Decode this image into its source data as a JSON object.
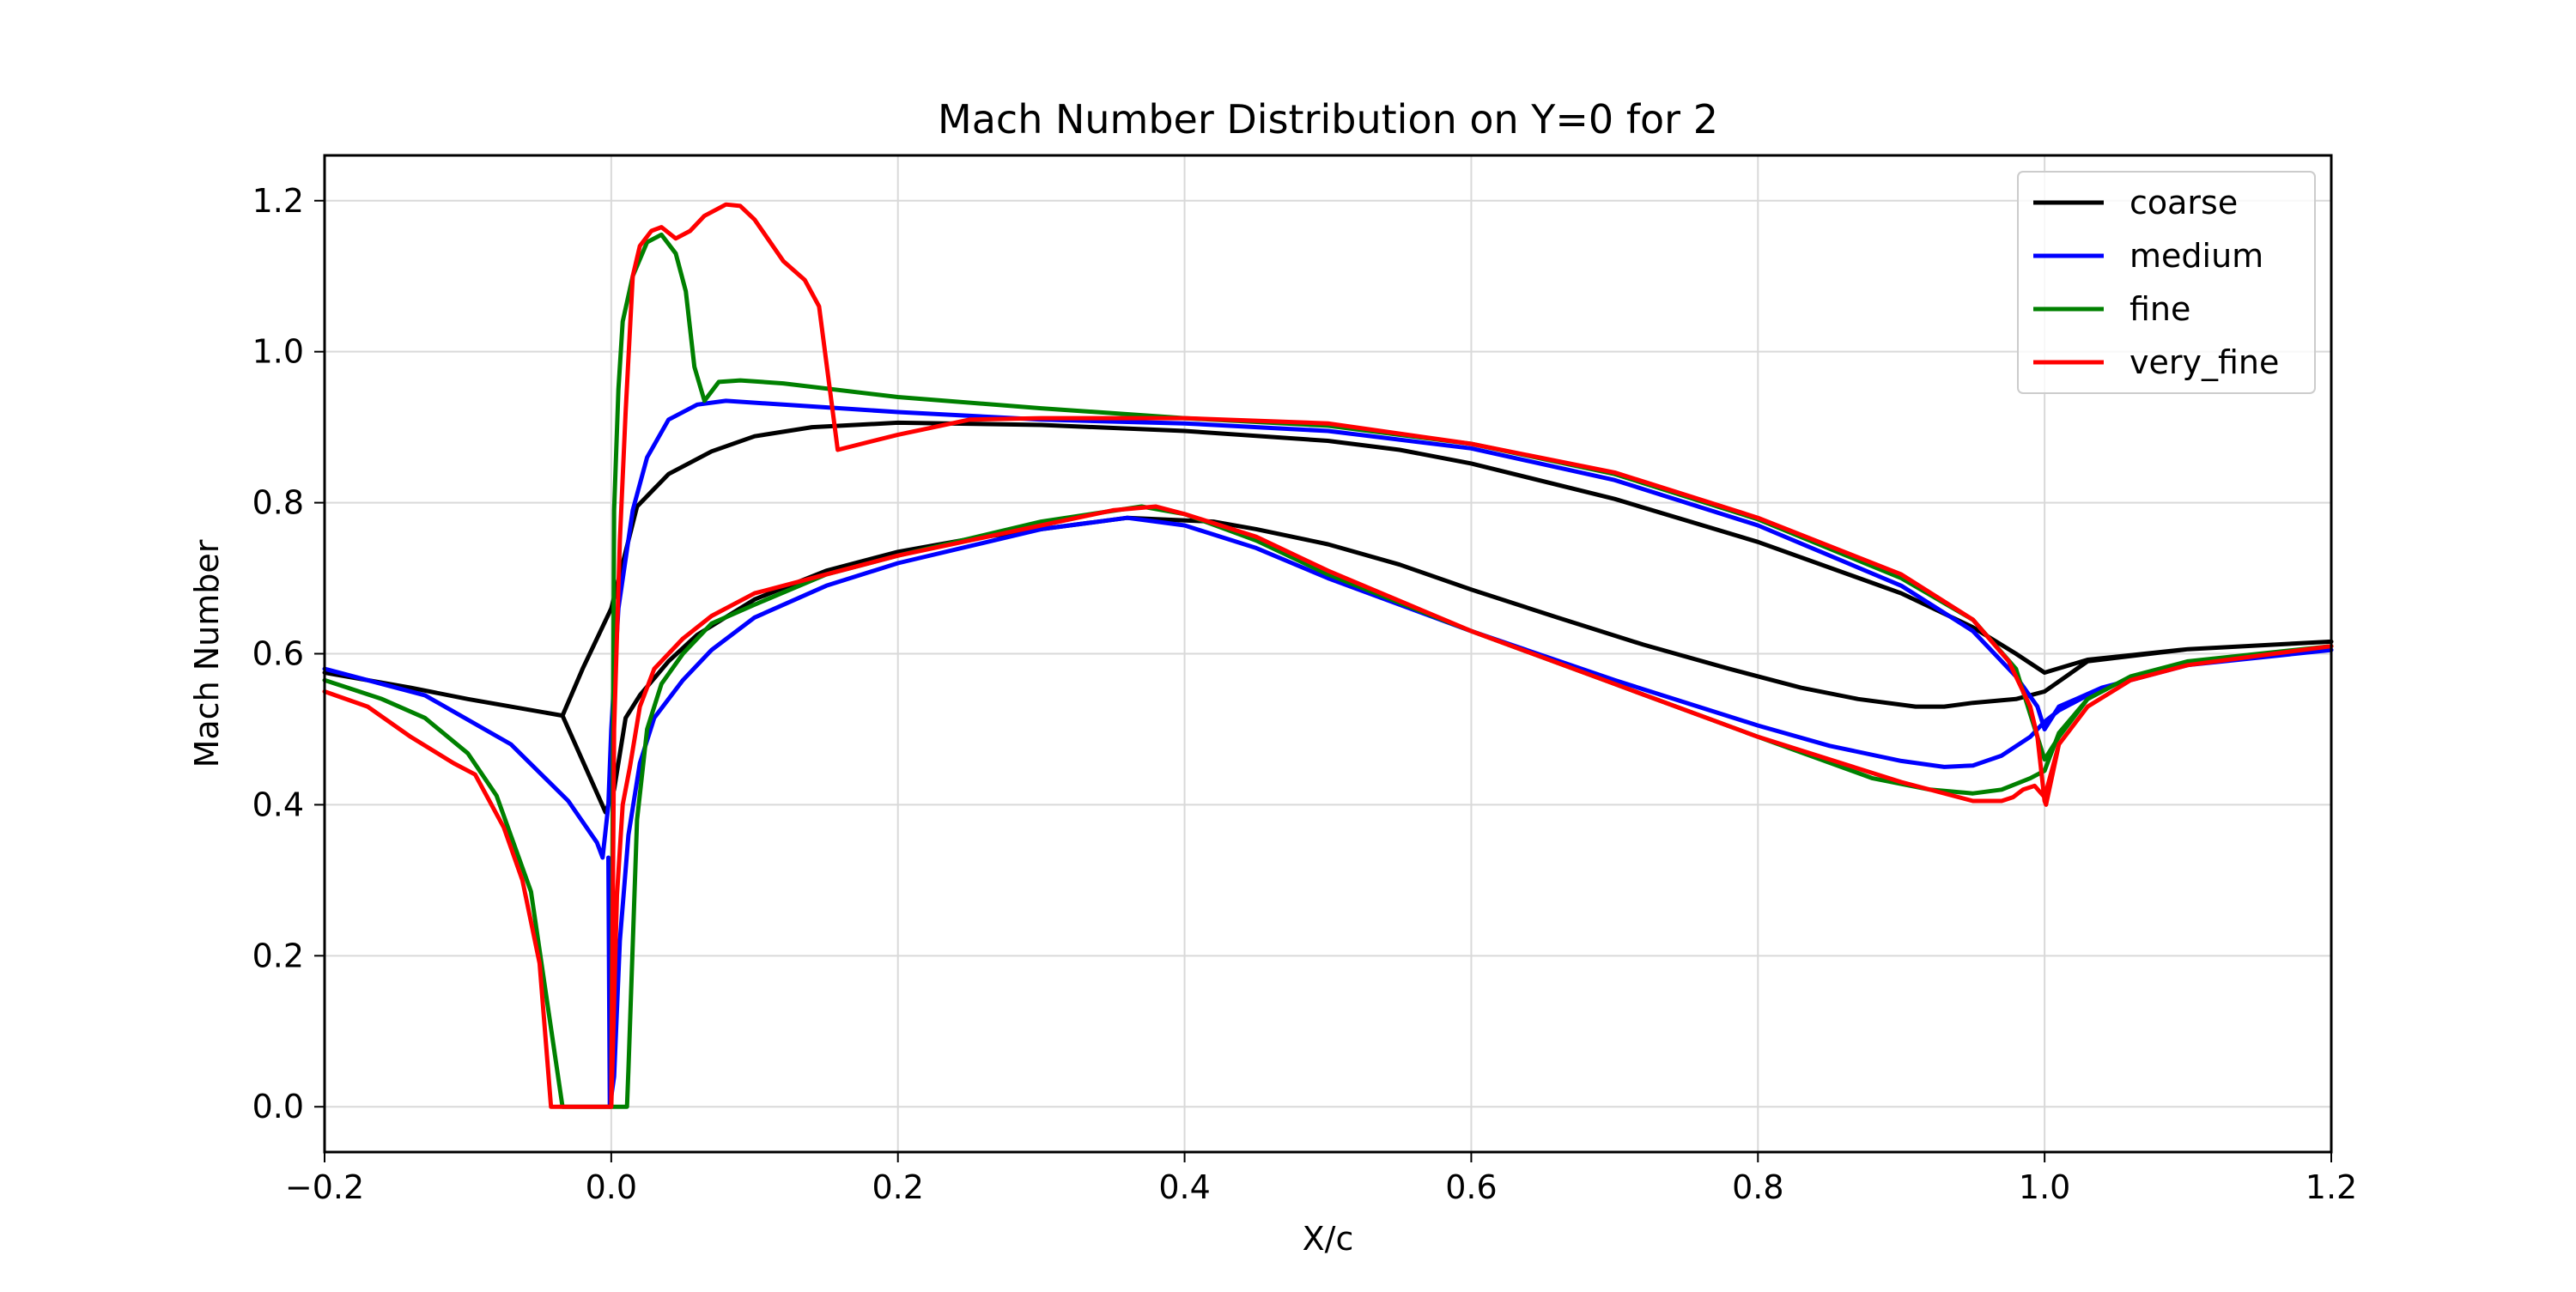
{
  "chart_data": {
    "type": "line",
    "title": "Mach Number Distribution on Y=0 for 2",
    "xlabel": "X/c",
    "ylabel": "Mach Number",
    "xlim": [
      -0.2,
      1.2
    ],
    "ylim": [
      -0.06,
      1.26
    ],
    "xticks": [
      -0.2,
      0.0,
      0.2,
      0.4,
      0.6,
      0.8,
      1.0,
      1.2
    ],
    "xtick_labels": [
      "−0.2",
      "0.0",
      "0.2",
      "0.4",
      "0.6",
      "0.8",
      "1.0",
      "1.2"
    ],
    "yticks": [
      0.0,
      0.2,
      0.4,
      0.6,
      0.8,
      1.0,
      1.2
    ],
    "ytick_labels": [
      "0.0",
      "0.2",
      "0.4",
      "0.6",
      "0.8",
      "1.0",
      "1.2"
    ],
    "grid": true,
    "legend_position": "top-right",
    "series": [
      {
        "name": "coarse",
        "color": "#000000",
        "points": [
          [
            -0.2,
            0.575
          ],
          [
            -0.14,
            0.555
          ],
          [
            -0.1,
            0.54
          ],
          [
            -0.034,
            0.518
          ],
          [
            -0.02,
            0.58
          ],
          [
            0.0,
            0.66
          ],
          [
            0.018,
            0.795
          ],
          [
            0.04,
            0.838
          ],
          [
            0.07,
            0.868
          ],
          [
            0.1,
            0.888
          ],
          [
            0.14,
            0.9
          ],
          [
            0.2,
            0.906
          ],
          [
            0.3,
            0.903
          ],
          [
            0.4,
            0.895
          ],
          [
            0.5,
            0.882
          ],
          [
            0.55,
            0.87
          ],
          [
            0.6,
            0.852
          ],
          [
            0.7,
            0.805
          ],
          [
            0.8,
            0.748
          ],
          [
            0.9,
            0.68
          ],
          [
            0.95,
            0.635
          ],
          [
            0.98,
            0.6
          ],
          [
            1.0,
            0.575
          ],
          [
            1.03,
            0.592
          ],
          [
            1.1,
            0.606
          ],
          [
            1.2,
            0.616
          ],
          [
            1.2,
            0.616
          ],
          [
            1.1,
            0.606
          ],
          [
            1.03,
            0.59
          ],
          [
            1.0,
            0.55
          ],
          [
            0.98,
            0.54
          ],
          [
            0.95,
            0.535
          ],
          [
            0.93,
            0.53
          ],
          [
            0.91,
            0.53
          ],
          [
            0.87,
            0.54
          ],
          [
            0.83,
            0.555
          ],
          [
            0.78,
            0.58
          ],
          [
            0.72,
            0.612
          ],
          [
            0.66,
            0.648
          ],
          [
            0.6,
            0.685
          ],
          [
            0.55,
            0.718
          ],
          [
            0.5,
            0.745
          ],
          [
            0.45,
            0.765
          ],
          [
            0.42,
            0.775
          ],
          [
            0.36,
            0.78
          ],
          [
            0.3,
            0.765
          ],
          [
            0.25,
            0.752
          ],
          [
            0.2,
            0.735
          ],
          [
            0.15,
            0.71
          ],
          [
            0.1,
            0.672
          ],
          [
            0.06,
            0.625
          ],
          [
            0.04,
            0.59
          ],
          [
            0.02,
            0.545
          ],
          [
            0.01,
            0.515
          ],
          [
            0.002,
            0.42
          ],
          [
            -0.004,
            0.39
          ],
          [
            -0.034,
            0.518
          ]
        ]
      },
      {
        "name": "medium",
        "color": "#0000ff",
        "points": [
          [
            -0.2,
            0.58
          ],
          [
            -0.13,
            0.545
          ],
          [
            -0.07,
            0.48
          ],
          [
            -0.03,
            0.405
          ],
          [
            -0.01,
            0.35
          ],
          [
            -0.006,
            0.33
          ],
          [
            -0.002,
            0.4
          ],
          [
            0.0,
            0.5
          ],
          [
            0.005,
            0.66
          ],
          [
            0.015,
            0.79
          ],
          [
            0.025,
            0.86
          ],
          [
            0.04,
            0.91
          ],
          [
            0.06,
            0.93
          ],
          [
            0.08,
            0.935
          ],
          [
            0.12,
            0.93
          ],
          [
            0.2,
            0.92
          ],
          [
            0.3,
            0.91
          ],
          [
            0.4,
            0.905
          ],
          [
            0.5,
            0.895
          ],
          [
            0.6,
            0.872
          ],
          [
            0.7,
            0.83
          ],
          [
            0.8,
            0.77
          ],
          [
            0.9,
            0.69
          ],
          [
            0.95,
            0.63
          ],
          [
            0.98,
            0.57
          ],
          [
            0.995,
            0.53
          ],
          [
            1.0,
            0.5
          ],
          [
            1.01,
            0.53
          ],
          [
            1.04,
            0.555
          ],
          [
            1.1,
            0.585
          ],
          [
            1.2,
            0.605
          ],
          [
            1.2,
            0.605
          ],
          [
            1.1,
            0.585
          ],
          [
            1.04,
            0.555
          ],
          [
            1.01,
            0.525
          ],
          [
            1.0,
            0.51
          ],
          [
            0.99,
            0.49
          ],
          [
            0.97,
            0.465
          ],
          [
            0.95,
            0.452
          ],
          [
            0.93,
            0.45
          ],
          [
            0.9,
            0.458
          ],
          [
            0.85,
            0.478
          ],
          [
            0.8,
            0.505
          ],
          [
            0.7,
            0.565
          ],
          [
            0.6,
            0.63
          ],
          [
            0.5,
            0.7
          ],
          [
            0.45,
            0.74
          ],
          [
            0.4,
            0.77
          ],
          [
            0.36,
            0.78
          ],
          [
            0.3,
            0.765
          ],
          [
            0.2,
            0.72
          ],
          [
            0.15,
            0.69
          ],
          [
            0.1,
            0.648
          ],
          [
            0.07,
            0.605
          ],
          [
            0.05,
            0.565
          ],
          [
            0.03,
            0.515
          ],
          [
            0.02,
            0.455
          ],
          [
            0.012,
            0.36
          ],
          [
            0.006,
            0.22
          ],
          [
            0.002,
            0.04
          ],
          [
            -0.001,
            0.0
          ],
          [
            -0.002,
            0.33
          ]
        ]
      },
      {
        "name": "fine",
        "color": "#008000",
        "points": [
          [
            -0.2,
            0.565
          ],
          [
            -0.16,
            0.54
          ],
          [
            -0.13,
            0.515
          ],
          [
            -0.1,
            0.468
          ],
          [
            -0.08,
            0.412
          ],
          [
            -0.056,
            0.285
          ],
          [
            -0.034,
            0.0
          ],
          [
            0.0,
            0.0
          ],
          [
            0.002,
            0.79
          ],
          [
            0.005,
            0.95
          ],
          [
            0.008,
            1.04
          ],
          [
            0.015,
            1.1
          ],
          [
            0.025,
            1.145
          ],
          [
            0.035,
            1.155
          ],
          [
            0.045,
            1.13
          ],
          [
            0.052,
            1.08
          ],
          [
            0.058,
            0.98
          ],
          [
            0.065,
            0.935
          ],
          [
            0.075,
            0.96
          ],
          [
            0.09,
            0.962
          ],
          [
            0.12,
            0.958
          ],
          [
            0.2,
            0.94
          ],
          [
            0.3,
            0.925
          ],
          [
            0.4,
            0.912
          ],
          [
            0.5,
            0.902
          ],
          [
            0.6,
            0.878
          ],
          [
            0.7,
            0.838
          ],
          [
            0.8,
            0.778
          ],
          [
            0.9,
            0.7
          ],
          [
            0.95,
            0.645
          ],
          [
            0.98,
            0.58
          ],
          [
            0.99,
            0.52
          ],
          [
            1.0,
            0.46
          ],
          [
            1.01,
            0.49
          ],
          [
            1.03,
            0.54
          ],
          [
            1.06,
            0.57
          ],
          [
            1.1,
            0.59
          ],
          [
            1.2,
            0.61
          ],
          [
            1.2,
            0.61
          ],
          [
            1.1,
            0.59
          ],
          [
            1.06,
            0.57
          ],
          [
            1.03,
            0.54
          ],
          [
            1.01,
            0.495
          ],
          [
            1.0,
            0.445
          ],
          [
            0.99,
            0.435
          ],
          [
            0.97,
            0.42
          ],
          [
            0.95,
            0.415
          ],
          [
            0.92,
            0.42
          ],
          [
            0.88,
            0.435
          ],
          [
            0.8,
            0.49
          ],
          [
            0.7,
            0.56
          ],
          [
            0.6,
            0.63
          ],
          [
            0.5,
            0.705
          ],
          [
            0.45,
            0.75
          ],
          [
            0.4,
            0.785
          ],
          [
            0.37,
            0.795
          ],
          [
            0.3,
            0.775
          ],
          [
            0.2,
            0.73
          ],
          [
            0.15,
            0.705
          ],
          [
            0.1,
            0.665
          ],
          [
            0.07,
            0.64
          ],
          [
            0.05,
            0.6
          ],
          [
            0.035,
            0.56
          ],
          [
            0.025,
            0.5
          ],
          [
            0.018,
            0.38
          ],
          [
            0.012,
            0.05
          ],
          [
            0.011,
            0.0
          ],
          [
            0.0,
            0.0
          ]
        ]
      },
      {
        "name": "very_fine",
        "color": "#ff0000",
        "points": [
          [
            -0.2,
            0.55
          ],
          [
            -0.17,
            0.53
          ],
          [
            -0.14,
            0.49
          ],
          [
            -0.11,
            0.455
          ],
          [
            -0.095,
            0.44
          ],
          [
            -0.075,
            0.37
          ],
          [
            -0.062,
            0.3
          ],
          [
            -0.05,
            0.19
          ],
          [
            -0.042,
            0.0
          ],
          [
            0.0,
            0.0
          ],
          [
            0.002,
            0.5
          ],
          [
            0.006,
            0.75
          ],
          [
            0.01,
            0.92
          ],
          [
            0.015,
            1.1
          ],
          [
            0.02,
            1.14
          ],
          [
            0.028,
            1.16
          ],
          [
            0.035,
            1.165
          ],
          [
            0.045,
            1.15
          ],
          [
            0.055,
            1.16
          ],
          [
            0.065,
            1.18
          ],
          [
            0.08,
            1.195
          ],
          [
            0.09,
            1.193
          ],
          [
            0.1,
            1.175
          ],
          [
            0.12,
            1.12
          ],
          [
            0.135,
            1.095
          ],
          [
            0.145,
            1.06
          ],
          [
            0.158,
            0.87
          ],
          [
            0.2,
            0.89
          ],
          [
            0.25,
            0.91
          ],
          [
            0.3,
            0.912
          ],
          [
            0.4,
            0.912
          ],
          [
            0.5,
            0.905
          ],
          [
            0.6,
            0.878
          ],
          [
            0.7,
            0.84
          ],
          [
            0.8,
            0.78
          ],
          [
            0.9,
            0.705
          ],
          [
            0.95,
            0.645
          ],
          [
            0.975,
            0.59
          ],
          [
            0.985,
            0.55
          ],
          [
            0.99,
            0.53
          ],
          [
            0.995,
            0.49
          ],
          [
            1.0,
            0.405
          ],
          [
            1.001,
            0.4
          ],
          [
            1.01,
            0.48
          ],
          [
            1.03,
            0.53
          ],
          [
            1.06,
            0.565
          ],
          [
            1.1,
            0.585
          ],
          [
            1.2,
            0.61
          ],
          [
            1.2,
            0.61
          ],
          [
            1.1,
            0.585
          ],
          [
            1.06,
            0.565
          ],
          [
            1.03,
            0.53
          ],
          [
            1.01,
            0.48
          ],
          [
            1.0,
            0.41
          ],
          [
            0.993,
            0.425
          ],
          [
            0.985,
            0.42
          ],
          [
            0.978,
            0.41
          ],
          [
            0.97,
            0.405
          ],
          [
            0.95,
            0.405
          ],
          [
            0.9,
            0.43
          ],
          [
            0.8,
            0.49
          ],
          [
            0.7,
            0.56
          ],
          [
            0.6,
            0.63
          ],
          [
            0.5,
            0.71
          ],
          [
            0.45,
            0.755
          ],
          [
            0.4,
            0.785
          ],
          [
            0.38,
            0.795
          ],
          [
            0.35,
            0.79
          ],
          [
            0.3,
            0.77
          ],
          [
            0.2,
            0.73
          ],
          [
            0.15,
            0.705
          ],
          [
            0.1,
            0.68
          ],
          [
            0.07,
            0.65
          ],
          [
            0.05,
            0.62
          ],
          [
            0.03,
            0.58
          ],
          [
            0.02,
            0.53
          ],
          [
            0.013,
            0.45
          ],
          [
            0.008,
            0.4
          ],
          [
            0.004,
            0.28
          ],
          [
            0.0,
            0.0
          ]
        ]
      }
    ]
  }
}
